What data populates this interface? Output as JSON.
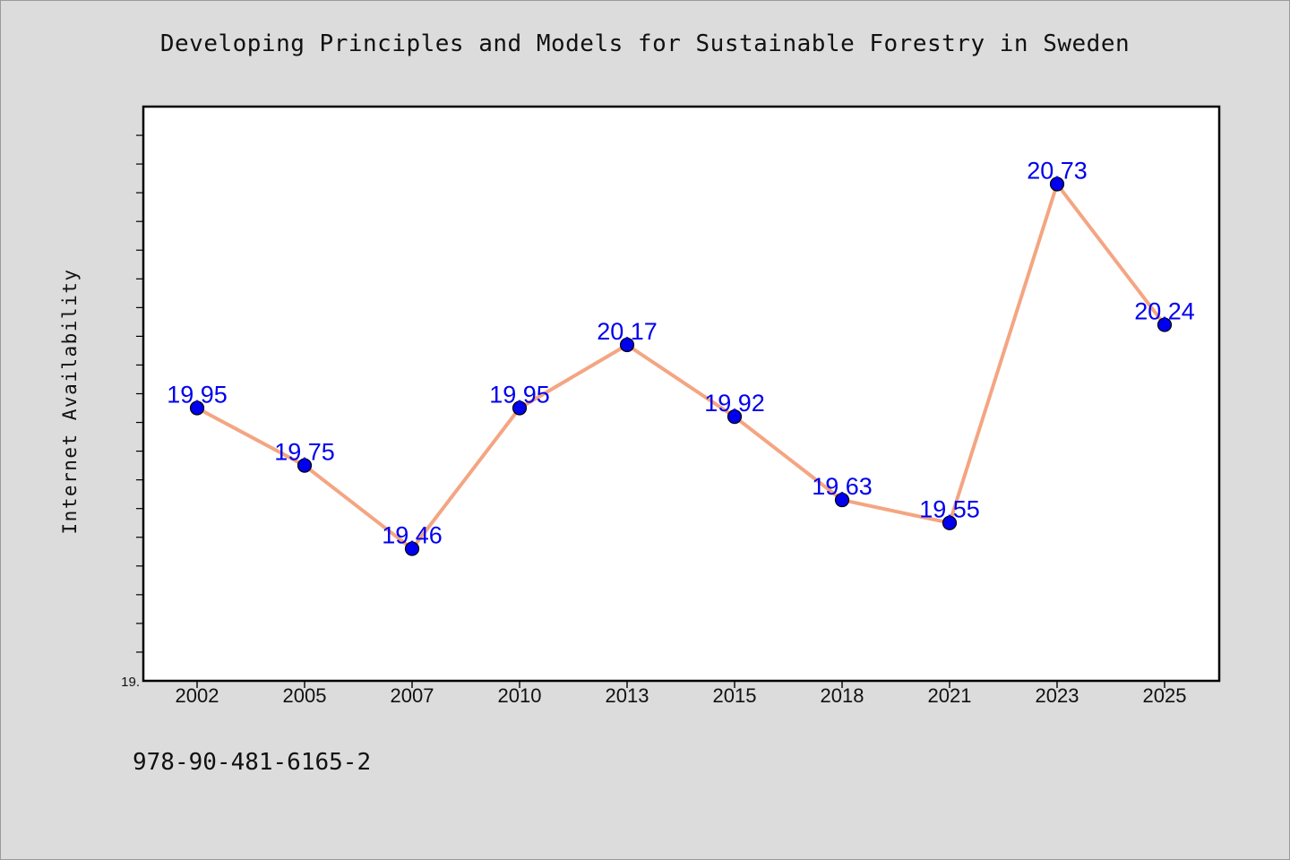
{
  "chart_data": {
    "type": "line",
    "title": "Developing Principles and Models for Sustainable Forestry in Sweden",
    "xlabel": "",
    "ylabel": "Internet Availability",
    "categories": [
      "2002",
      "2005",
      "2007",
      "2010",
      "2013",
      "2015",
      "2018",
      "2021",
      "2023",
      "2025"
    ],
    "series": [
      {
        "values": [
          19.95,
          19.75,
          19.46,
          19.95,
          20.17,
          19.92,
          19.63,
          19.55,
          20.73,
          20.24
        ]
      }
    ],
    "data_labels": [
      "19.95",
      "19.75",
      "19.46",
      "19.95",
      "20.17",
      "19.92",
      "19.63",
      "19.55",
      "20.73",
      "20.24"
    ],
    "ylim": [
      19.0,
      21.0
    ],
    "y_tick_labels": [
      "19."
    ],
    "grid": false,
    "line_color": "#f4a582",
    "marker_color": "#0000ee",
    "data_label_color": "#0000ee"
  },
  "footer": {
    "code": "978-90-481-6165-2"
  }
}
